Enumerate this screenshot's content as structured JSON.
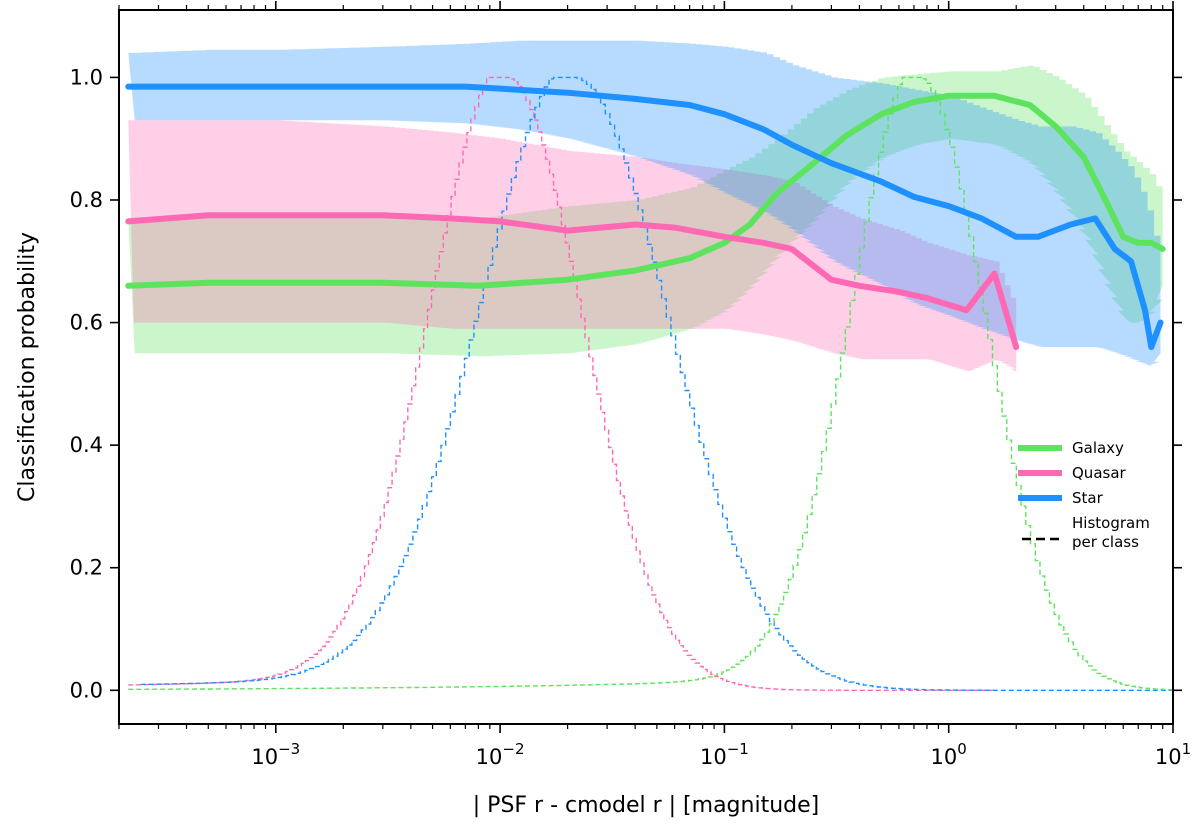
{
  "chart_data": {
    "type": "line",
    "xscale": "log",
    "xlim": [
      0.0002,
      10
    ],
    "ylim": [
      -0.055,
      1.11
    ],
    "xlabel": "| PSF r - cmodel r | [magnitude]",
    "ylabel": "Classification probability",
    "x_ticks": [
      {
        "value": 0.001,
        "base": "10",
        "exp": "−3"
      },
      {
        "value": 0.01,
        "base": "10",
        "exp": "−2"
      },
      {
        "value": 0.1,
        "base": "10",
        "exp": "−1"
      },
      {
        "value": 1,
        "base": "10",
        "exp": "0"
      },
      {
        "value": 10,
        "base": "10",
        "exp": "1"
      }
    ],
    "y_ticks": [
      {
        "value": 0.0,
        "label": "0.0"
      },
      {
        "value": 0.2,
        "label": "0.2"
      },
      {
        "value": 0.4,
        "label": "0.4"
      },
      {
        "value": 0.6,
        "label": "0.6"
      },
      {
        "value": 0.8,
        "label": "0.8"
      },
      {
        "value": 1.0,
        "label": "1.0"
      }
    ],
    "colors": {
      "galaxy": "#5ee35e",
      "quasar": "#ff69b4",
      "star": "#1e90ff"
    },
    "series": [
      {
        "name": "Galaxy",
        "key": "galaxy",
        "x": [
          0.00022,
          0.0005,
          0.001,
          0.003,
          0.008,
          0.02,
          0.04,
          0.07,
          0.1,
          0.13,
          0.17,
          0.25,
          0.35,
          0.5,
          0.7,
          1.0,
          1.6,
          2.3,
          3.0,
          4.0,
          5.0,
          6.0,
          7.0,
          8.0,
          9.0
        ],
        "values": [
          0.66,
          0.665,
          0.665,
          0.665,
          0.66,
          0.67,
          0.685,
          0.705,
          0.73,
          0.76,
          0.81,
          0.86,
          0.905,
          0.94,
          0.96,
          0.97,
          0.97,
          0.955,
          0.92,
          0.87,
          0.8,
          0.74,
          0.73,
          0.73,
          0.72
        ],
        "band_low": [
          0.55,
          0.55,
          0.55,
          0.55,
          0.545,
          0.55,
          0.565,
          0.59,
          0.62,
          0.66,
          0.71,
          0.77,
          0.83,
          0.87,
          0.89,
          0.9,
          0.89,
          0.86,
          0.81,
          0.74,
          0.66,
          0.6,
          0.6,
          0.62,
          0.66
        ],
        "band_high": [
          0.77,
          0.78,
          0.78,
          0.78,
          0.77,
          0.79,
          0.8,
          0.82,
          0.85,
          0.87,
          0.9,
          0.95,
          0.98,
          1.0,
          1.005,
          1.01,
          1.01,
          1.02,
          1.0,
          0.97,
          0.92,
          0.88,
          0.86,
          0.84,
          0.8
        ]
      },
      {
        "name": "Quasar",
        "key": "quasar",
        "x": [
          0.00022,
          0.0005,
          0.001,
          0.003,
          0.006,
          0.01,
          0.02,
          0.04,
          0.06,
          0.1,
          0.15,
          0.2,
          0.3,
          0.4,
          0.6,
          0.8,
          1.2,
          1.6,
          2.0
        ],
        "values": [
          0.765,
          0.775,
          0.775,
          0.775,
          0.77,
          0.765,
          0.75,
          0.76,
          0.755,
          0.74,
          0.73,
          0.72,
          0.67,
          0.66,
          0.65,
          0.64,
          0.62,
          0.68,
          0.56
        ],
        "band_low": [
          0.6,
          0.6,
          0.6,
          0.6,
          0.59,
          0.59,
          0.59,
          0.59,
          0.59,
          0.59,
          0.58,
          0.57,
          0.55,
          0.54,
          0.54,
          0.54,
          0.52,
          0.54,
          0.52
        ],
        "band_high": [
          0.93,
          0.93,
          0.93,
          0.92,
          0.91,
          0.9,
          0.88,
          0.87,
          0.86,
          0.85,
          0.84,
          0.83,
          0.79,
          0.77,
          0.75,
          0.73,
          0.71,
          0.7,
          0.62
        ]
      },
      {
        "name": "Star",
        "key": "star",
        "x": [
          0.00022,
          0.0005,
          0.001,
          0.003,
          0.007,
          0.012,
          0.02,
          0.04,
          0.07,
          0.1,
          0.15,
          0.2,
          0.3,
          0.5,
          0.7,
          1.0,
          1.4,
          2.0,
          2.5,
          3.5,
          4.5,
          5.5,
          6.5,
          7.5,
          8.0,
          8.8
        ],
        "values": [
          0.985,
          0.985,
          0.985,
          0.985,
          0.985,
          0.98,
          0.975,
          0.965,
          0.955,
          0.94,
          0.915,
          0.89,
          0.86,
          0.83,
          0.805,
          0.79,
          0.77,
          0.74,
          0.74,
          0.76,
          0.77,
          0.72,
          0.7,
          0.62,
          0.56,
          0.6
        ],
        "band_low": [
          0.93,
          0.93,
          0.93,
          0.93,
          0.925,
          0.915,
          0.9,
          0.87,
          0.84,
          0.81,
          0.78,
          0.75,
          0.7,
          0.66,
          0.63,
          0.61,
          0.59,
          0.57,
          0.56,
          0.56,
          0.56,
          0.55,
          0.54,
          0.53,
          0.53,
          0.55
        ],
        "band_high": [
          1.04,
          1.045,
          1.045,
          1.05,
          1.055,
          1.06,
          1.06,
          1.06,
          1.055,
          1.05,
          1.04,
          1.02,
          1.0,
          0.99,
          0.98,
          0.97,
          0.95,
          0.93,
          0.92,
          0.92,
          0.91,
          0.88,
          0.85,
          0.8,
          0.76,
          0.7
        ]
      }
    ],
    "histograms": [
      {
        "key": "quasar",
        "name": "Quasar histogram",
        "mode": 0.0105,
        "sigma": 0.34,
        "start": 0.00022,
        "end": 1.6
      },
      {
        "key": "star",
        "name": "Star histogram",
        "mode": 0.021,
        "sigma": 0.42,
        "start": 0.00025,
        "end": 10
      },
      {
        "key": "galaxy",
        "name": "Galaxy histogram",
        "mode": 0.72,
        "sigma": 0.3,
        "start": 0.00022,
        "end": 10
      }
    ],
    "legend": {
      "position": "right",
      "entries": [
        {
          "label": "Galaxy",
          "key": "galaxy",
          "style": "solid"
        },
        {
          "label": "Quasar",
          "key": "quasar",
          "style": "solid"
        },
        {
          "label": "Star",
          "key": "star",
          "style": "solid"
        },
        {
          "label": "Histogram",
          "label2": "per class",
          "key": "histogram",
          "style": "dashed"
        }
      ]
    }
  }
}
